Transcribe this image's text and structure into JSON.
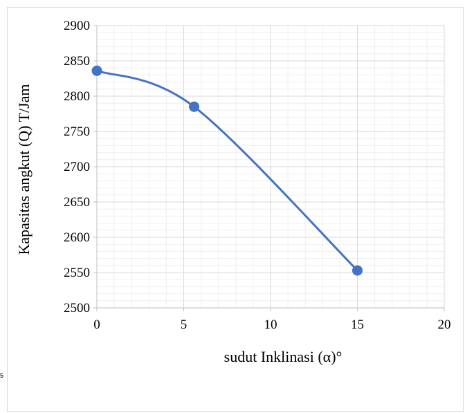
{
  "chart_data": {
    "type": "line",
    "title": "",
    "xlabel": "sudut Inklinasi (α)°",
    "ylabel": "Kapasitas angkut (Q) T/Jam",
    "xlim": [
      0,
      20
    ],
    "ylim": [
      2500,
      2900
    ],
    "x_ticks": [
      "0",
      "5",
      "10",
      "15",
      "20"
    ],
    "y_ticks": [
      "2500",
      "2550",
      "2600",
      "2650",
      "2700",
      "2750",
      "2800",
      "2850",
      "2900"
    ],
    "grid": true,
    "legend": "none",
    "series": [
      {
        "x": [
          0,
          5.6,
          15
        ],
        "y": [
          2836,
          2785,
          2553
        ],
        "color": "#4472c4",
        "smoothed": true,
        "markers": "circle"
      }
    ]
  },
  "stray_mark": "5"
}
